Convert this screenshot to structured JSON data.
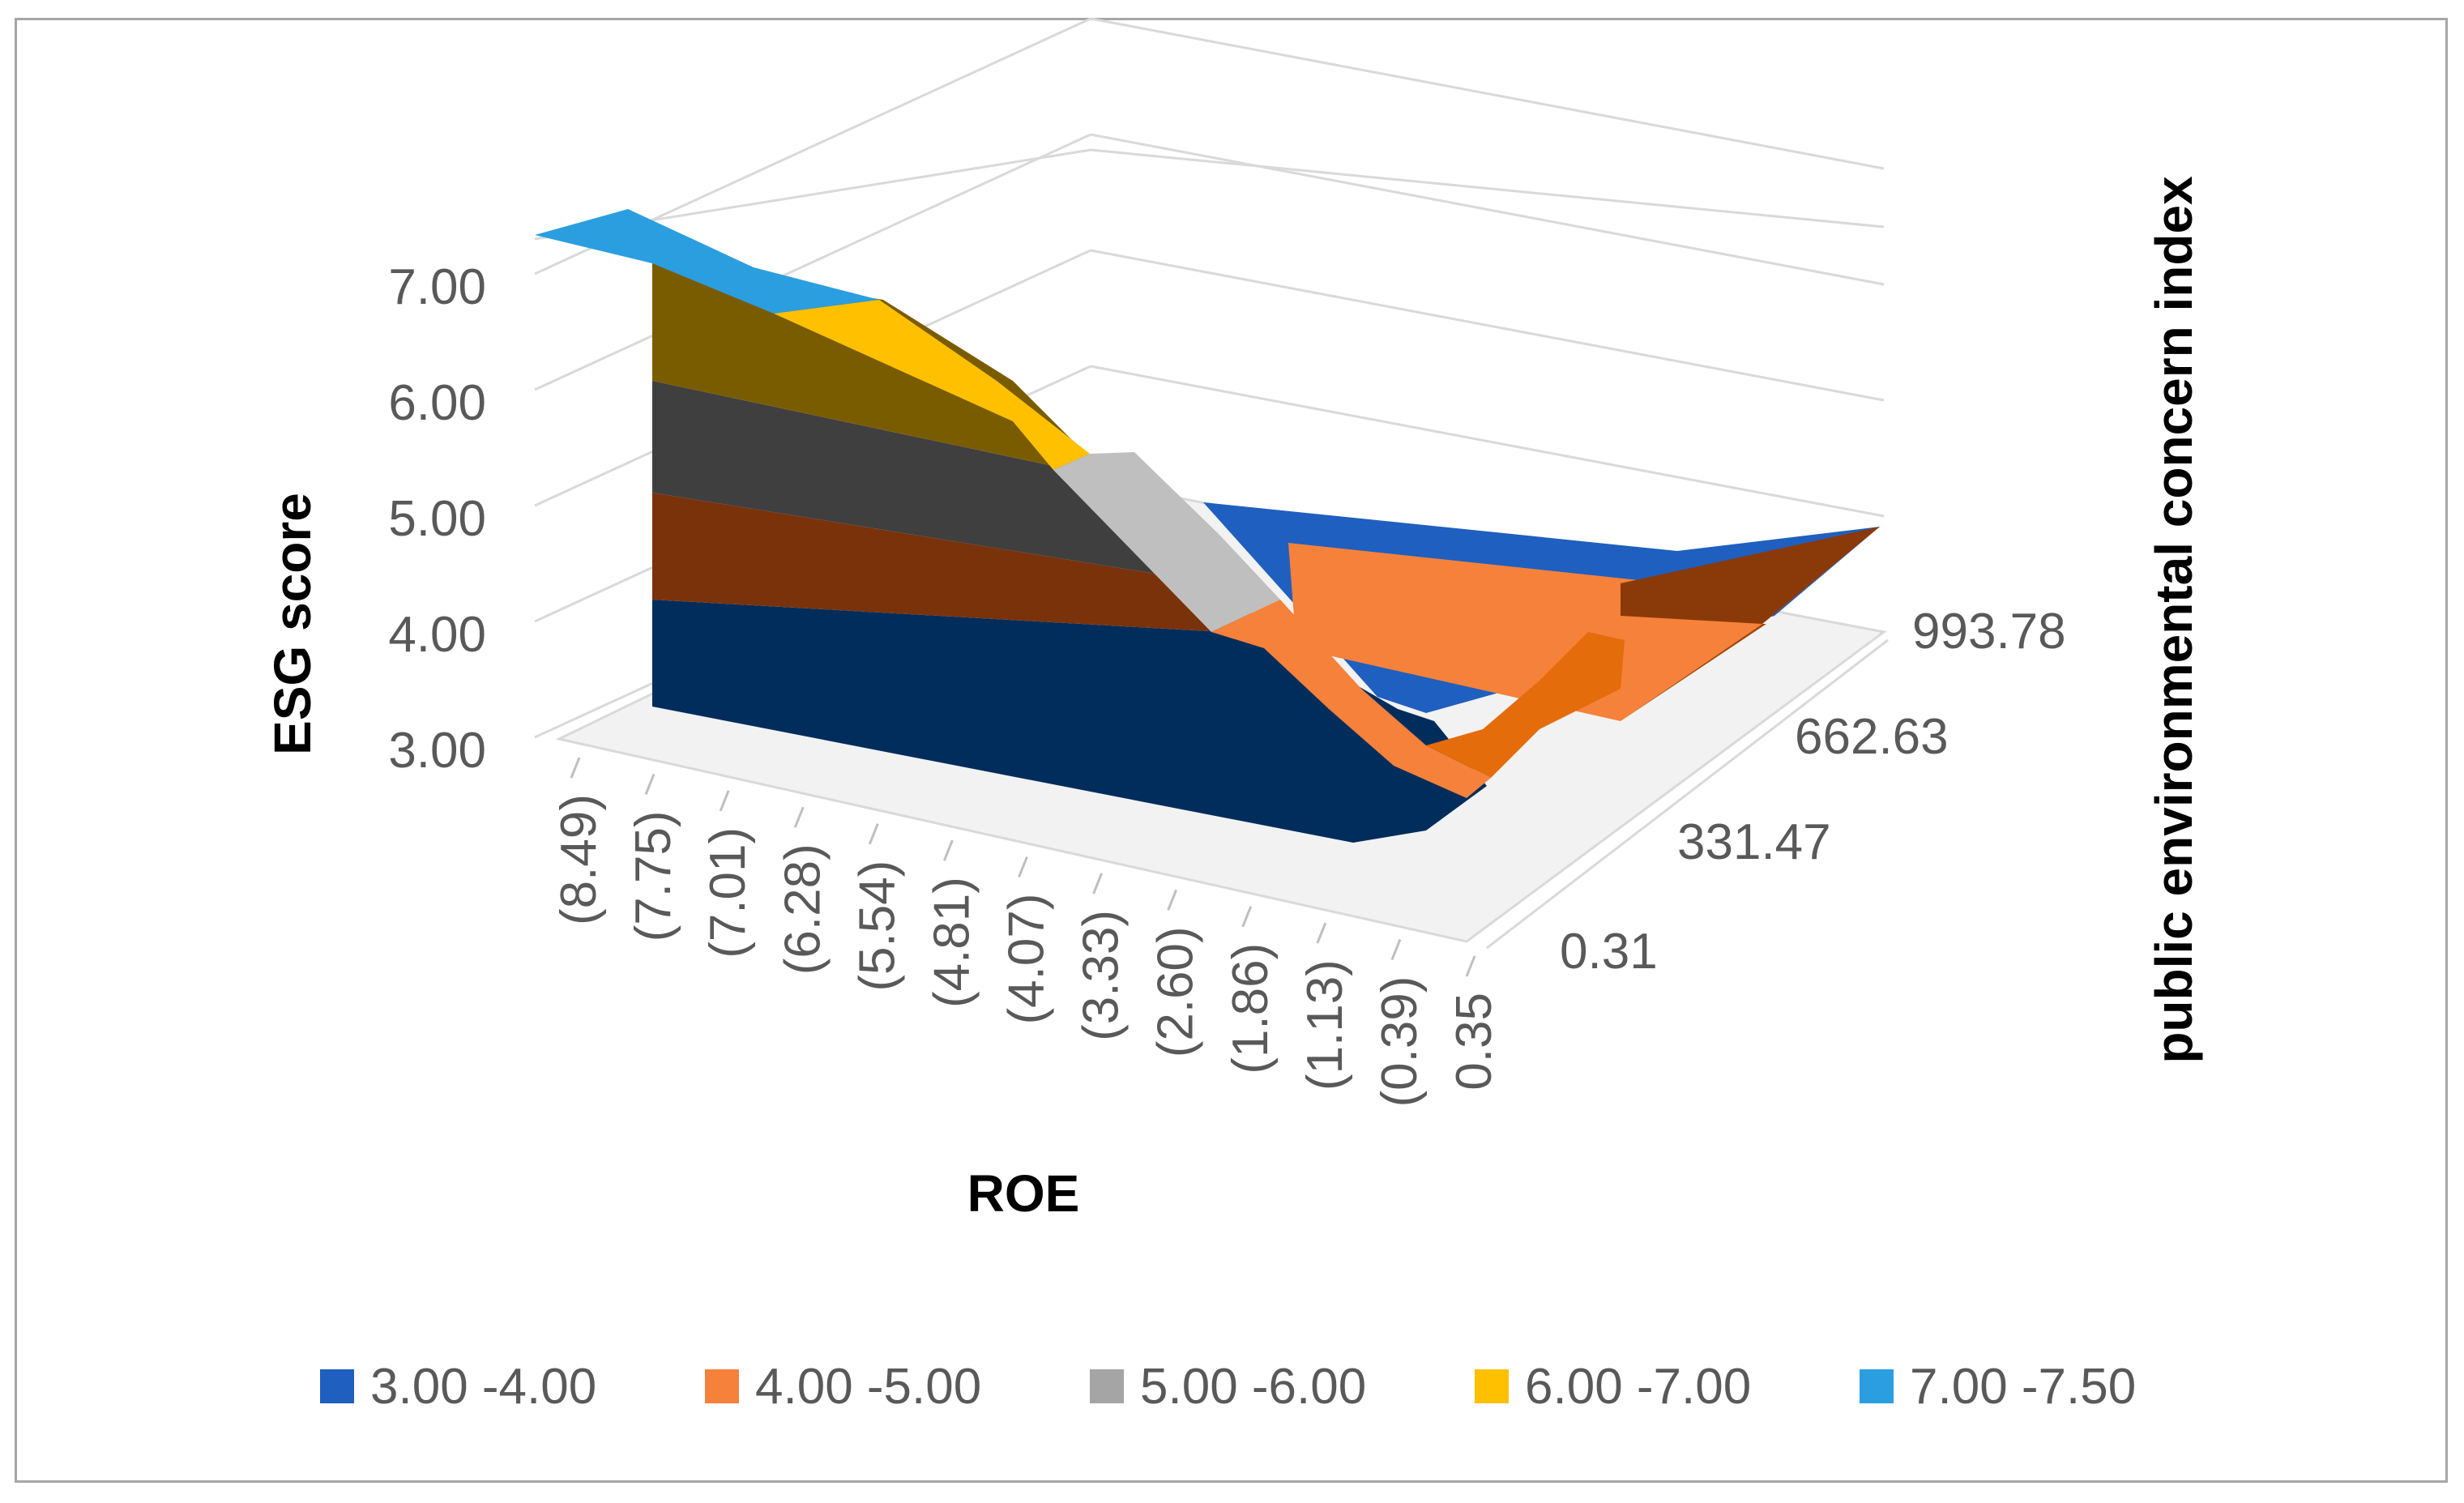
{
  "chart_data": {
    "type": "surface",
    "title": "",
    "xlabel": "ROE",
    "ylabel": "ESG score",
    "zlabel": "public environmental concern index",
    "x_ticks": [
      "(8.49)",
      "(7.75)",
      "(7.01)",
      "(6.28)",
      "(5.54)",
      "(4.81)",
      "(4.07)",
      "(3.33)",
      "(2.60)",
      "(1.86)",
      "(1.13)",
      "(0.39)",
      "0.35"
    ],
    "y_ticks": [
      "3.00",
      "4.00",
      "5.00",
      "6.00",
      "7.00"
    ],
    "z_ticks": [
      "0.31",
      "331.47",
      "662.63",
      "993.78"
    ],
    "ylim": [
      3.0,
      7.5
    ],
    "front_profile": {
      "x": [
        -8.49,
        -7.75,
        -7.01,
        -6.28,
        -5.54,
        -4.81,
        -4.07,
        -3.33,
        -2.6,
        -1.86,
        -1.13,
        -0.39,
        0.35
      ],
      "esg": [
        7.45,
        7.35,
        7.15,
        6.85,
        6.45,
        5.9,
        5.2,
        4.4,
        3.6,
        3.1,
        3.25,
        3.9,
        4.1
      ]
    },
    "legend": [
      {
        "label": "3.00 -4.00",
        "color": "#1f5fbf"
      },
      {
        "label": "4.00 -5.00",
        "color": "#f5813b"
      },
      {
        "label": "5.00 -6.00",
        "color": "#a5a5a5"
      },
      {
        "label": "6.00 -7.00",
        "color": "#ffc000"
      },
      {
        "label": "7.00 -7.50",
        "color": "#2b9ee0"
      }
    ],
    "legend_position": "bottom",
    "grid": true
  }
}
